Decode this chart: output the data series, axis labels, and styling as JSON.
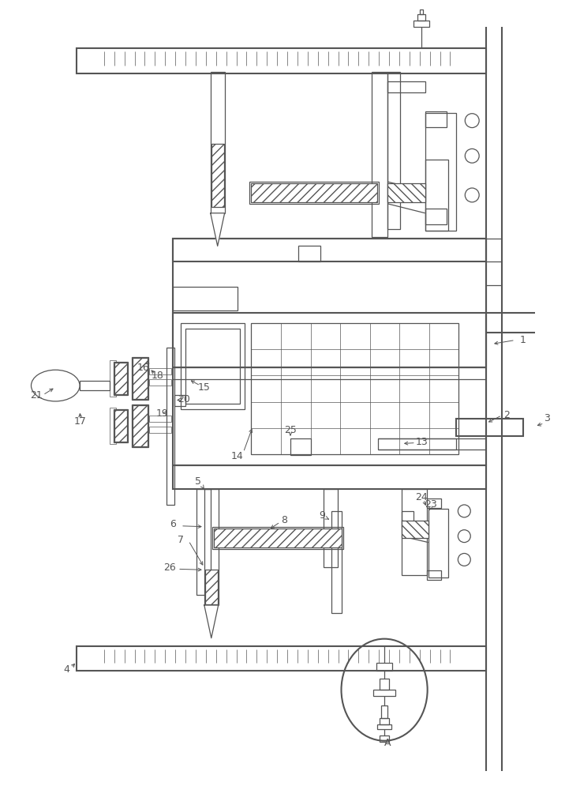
{
  "bg_color": "#ffffff",
  "line_color": "#555555",
  "fig_width": 7.35,
  "fig_height": 10.0,
  "lw": 0.9,
  "lw2": 1.5,
  "lw3": 0.6
}
